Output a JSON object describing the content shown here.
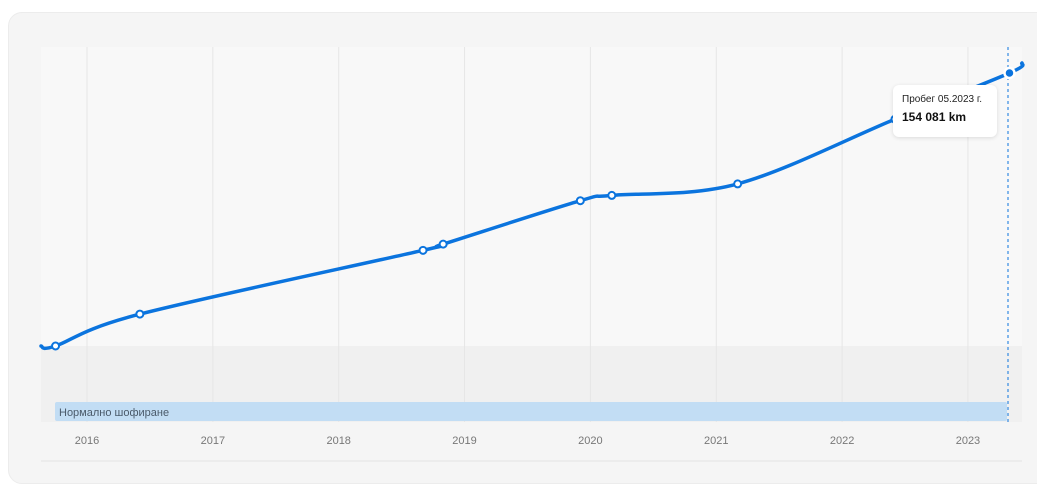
{
  "chart_data": {
    "type": "line",
    "x_ticks": [
      "2016",
      "2017",
      "2018",
      "2019",
      "2020",
      "2021",
      "2022",
      "2023"
    ],
    "series": [
      {
        "points": [
          {
            "x": 2015.75,
            "y": 0
          },
          {
            "x": 2016.42,
            "y": 18000
          },
          {
            "x": 2018.67,
            "y": 54000
          },
          {
            "x": 2018.83,
            "y": 57500
          },
          {
            "x": 2019.92,
            "y": 82000
          },
          {
            "x": 2020.17,
            "y": 85000
          },
          {
            "x": 2021.17,
            "y": 91500
          },
          {
            "x": 2022.42,
            "y": 128000
          },
          {
            "x": 2023.33,
            "y": 154081
          }
        ]
      }
    ],
    "band": {
      "label": "Нормално шофиране"
    },
    "tooltip": {
      "label": "Пробег 05.2023 г.",
      "value": "154 081 km"
    },
    "colors": {
      "line": "#0b74de",
      "band": "#c2ddf4",
      "gridline": "#e6e6e6",
      "tick_text": "#777777"
    }
  }
}
